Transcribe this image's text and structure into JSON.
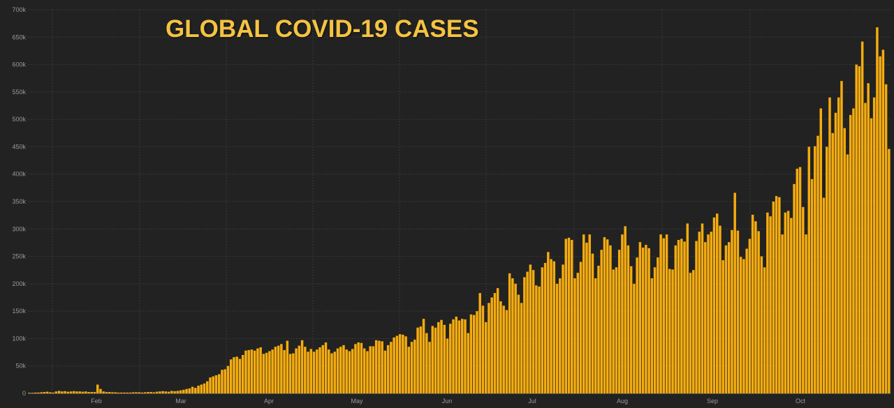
{
  "chart_data": {
    "type": "bar",
    "title": "GLOBAL COVID-19 CASES",
    "xlabel": "",
    "ylabel": "",
    "ylim": [
      0,
      700000
    ],
    "yticks": [
      0,
      50000,
      100000,
      150000,
      200000,
      250000,
      300000,
      350000,
      400000,
      450000,
      500000,
      550000,
      600000,
      650000,
      700000
    ],
    "ytick_labels": [
      "0",
      "50k",
      "100k",
      "150k",
      "200k",
      "250k",
      "300k",
      "350k",
      "400k",
      "450k",
      "500k",
      "550k",
      "600k",
      "650k",
      "700k"
    ],
    "xtick_labels": [
      "Feb",
      "Mar",
      "Apr",
      "May",
      "Jun",
      "Jul",
      "Aug",
      "Sep",
      "Oct"
    ],
    "grid": true,
    "bar_color": "#f5ac0f",
    "title_color": "#f5c342",
    "background_color": "#222222",
    "series": [
      {
        "values": [
          1000,
          1000,
          1500,
          1500,
          2000,
          2500,
          3000,
          2000,
          1500,
          3500,
          4500,
          3500,
          4000,
          3000,
          3500,
          4000,
          3500,
          3500,
          3000,
          3500,
          2500,
          2500,
          2500,
          16000,
          8000,
          3500,
          2500,
          2500,
          2000,
          2000,
          1500,
          1500,
          1500,
          1500,
          1500,
          2000,
          2000,
          2000,
          1500,
          2000,
          2500,
          2500,
          2000,
          3000,
          3500,
          4000,
          3500,
          3000,
          4500,
          4000,
          4500,
          5500,
          6500,
          8000,
          9000,
          12000,
          10000,
          14000,
          16000,
          18000,
          22000,
          29000,
          31000,
          33000,
          35000,
          43000,
          44000,
          50000,
          62000,
          66000,
          67000,
          63000,
          70000,
          78000,
          79000,
          80000,
          78000,
          82000,
          84000,
          72000,
          74000,
          77000,
          80000,
          85000,
          87000,
          90000,
          79000,
          96000,
          72000,
          73000,
          82000,
          87000,
          97000,
          85000,
          76000,
          81000,
          76000,
          80000,
          84000,
          88000,
          93000,
          80000,
          73000,
          76000,
          82000,
          85000,
          88000,
          80000,
          77000,
          81000,
          90000,
          93000,
          92000,
          82000,
          77000,
          86000,
          86000,
          97000,
          96000,
          95000,
          78000,
          88000,
          94000,
          102000,
          105000,
          108000,
          107000,
          104000,
          85000,
          94000,
          98000,
          120000,
          122000,
          136000,
          110000,
          94000,
          123000,
          120000,
          130000,
          134000,
          125000,
          100000,
          127000,
          135000,
          140000,
          133000,
          136000,
          135000,
          110000,
          144000,
          143000,
          150000,
          183000,
          160000,
          130000,
          165000,
          175000,
          183000,
          192000,
          168000,
          160000,
          152000,
          219000,
          210000,
          200000,
          180000,
          165000,
          212000,
          222000,
          235000,
          225000,
          197000,
          195000,
          230000,
          238000,
          258000,
          245000,
          241000,
          200000,
          210000,
          235000,
          282000,
          284000,
          280000,
          210000,
          220000,
          240000,
          290000,
          275000,
          290000,
          255000,
          210000,
          233000,
          262000,
          285000,
          281000,
          270000,
          226000,
          230000,
          262000,
          290000,
          305000,
          270000,
          232000,
          200000,
          248000,
          276000,
          266000,
          271000,
          265000,
          210000,
          230000,
          248000,
          290000,
          283000,
          290000,
          227000,
          226000,
          270000,
          280000,
          282000,
          277000,
          310000,
          220000,
          225000,
          278000,
          295000,
          310000,
          276000,
          290000,
          295000,
          321000,
          328000,
          306000,
          243000,
          270000,
          276000,
          298000,
          366000,
          297000,
          249000,
          245000,
          264000,
          282000,
          326000,
          314000,
          296000,
          250000,
          230000,
          330000,
          323000,
          350000,
          360000,
          358000,
          290000,
          330000,
          333000,
          320000,
          382000,
          410000,
          413000,
          340000,
          290000,
          450000,
          391000,
          451000,
          470000,
          520000,
          357000,
          450000,
          540000,
          475000,
          512000,
          540000,
          570000,
          484000,
          436000,
          508000,
          520000,
          600000,
          597000,
          642000,
          530000,
          566000,
          502000,
          540000,
          668000,
          615000,
          627000,
          564000,
          446000
        ]
      }
    ]
  }
}
